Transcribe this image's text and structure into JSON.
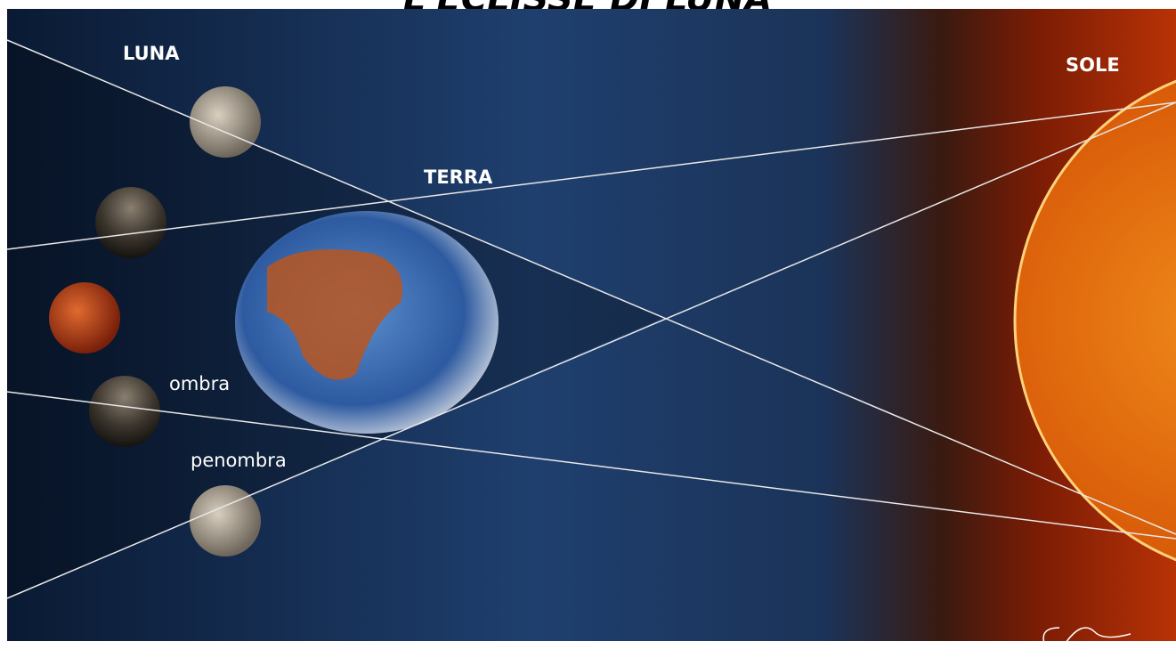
{
  "title": "L'ECLISSE DI LUNA",
  "labels": {
    "luna": "LUNA",
    "sole": "SOLE",
    "terra": "TERRA",
    "ombra": "ombra",
    "penombra": "penombra"
  }
}
